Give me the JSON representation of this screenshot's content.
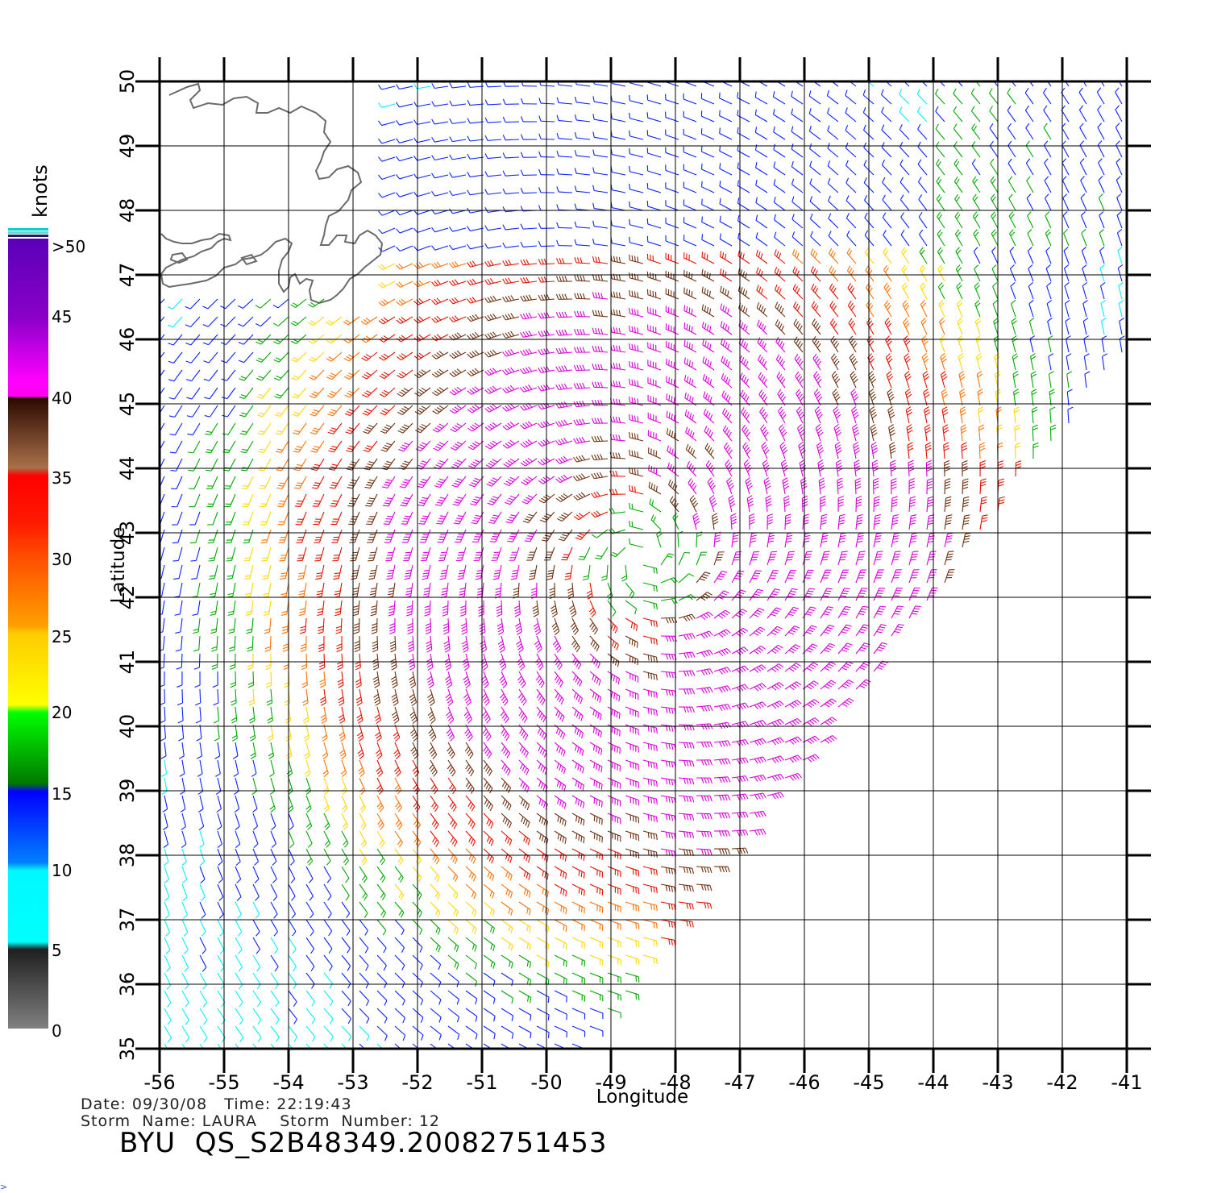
{
  "map": {
    "lon_range": [
      -56,
      -41
    ],
    "lat_range": [
      35,
      50
    ],
    "xlabel": "Longitude",
    "ylabel": "Latitude",
    "lon_ticks": [
      "-56",
      "-55",
      "-54",
      "-53",
      "-52",
      "-51",
      "-50",
      "-49",
      "-48",
      "-47",
      "-46",
      "-45",
      "-44",
      "-43",
      "-42",
      "-41"
    ],
    "lat_ticks": [
      "35",
      "36",
      "37",
      "38",
      "39",
      "40",
      "41",
      "42",
      "43",
      "44",
      "45",
      "46",
      "47",
      "48",
      "49",
      "50"
    ],
    "grid": true,
    "features": [
      "coastline-newfoundland",
      "wind-barb-field",
      "cyclone-center"
    ],
    "storm_center": {
      "lon": -48.5,
      "lat": 42.6
    }
  },
  "legend": {
    "unit": "knots",
    "labels": [
      ">50",
      "45",
      "40",
      "35",
      "30",
      "25",
      "20",
      "15",
      "10",
      "5",
      "0"
    ],
    "colors": {
      "calm": "#3a3a3a",
      "cyan": "#00f0ff",
      "blue": "#0a22ff",
      "green": "#00a800",
      "yellow": "#ffd800",
      "orange": "#ff7000",
      "red": "#e41000",
      "brown": "#6e3010",
      "magenta": "#d800d8",
      "purple": "#6a00c8"
    }
  },
  "info": {
    "date_line": "Date: 09/30/08   Time: 22:19:43",
    "storm_line": "Storm  Name: LAURA    Storm  Number: 12",
    "id_line": "BYU  QS_S2B48349.20082751453"
  }
}
